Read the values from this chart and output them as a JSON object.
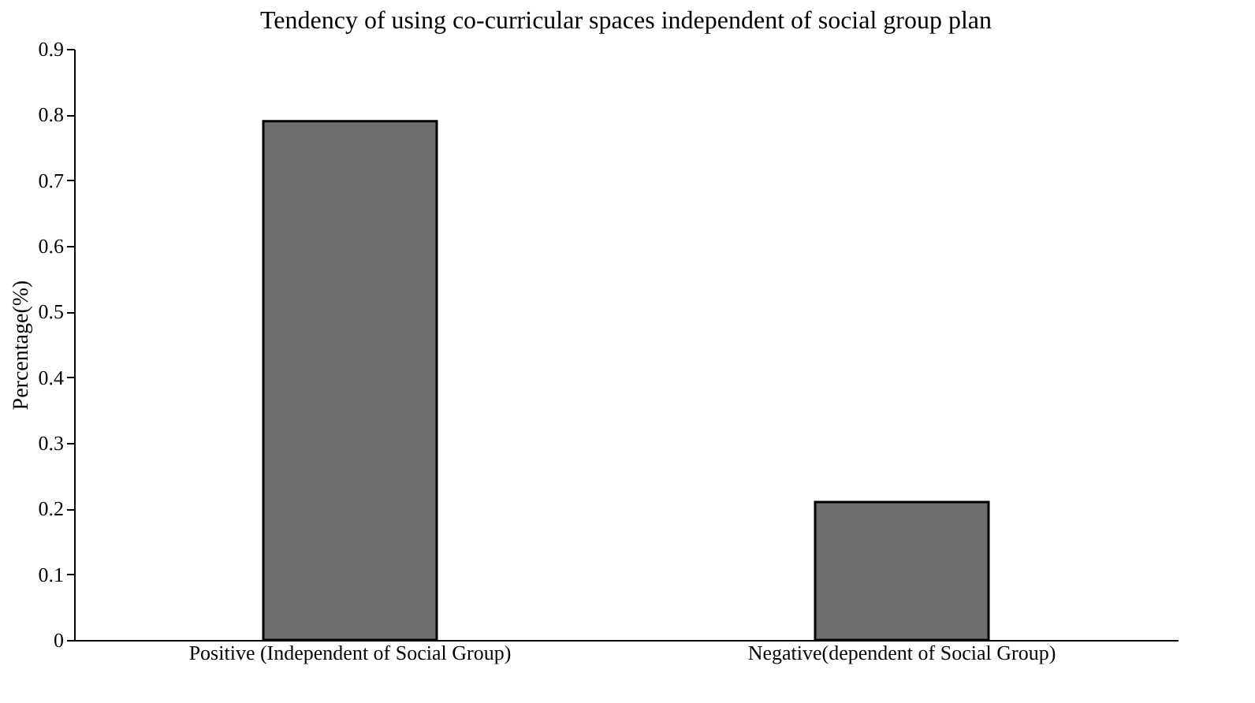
{
  "chart_data": {
    "type": "bar",
    "title": "Tendency of using co-curricular spaces independent of social group plan",
    "ylabel": "Percentage(%)",
    "categories": [
      "Positive (Independent of Social Group)",
      "Negative(dependent of Social Group)"
    ],
    "values": [
      0.79,
      0.21
    ],
    "color": "#6e6e6e",
    "ylim": [
      0,
      0.9
    ],
    "yticks": [
      0,
      0.1,
      0.2,
      0.3,
      0.4,
      0.5,
      0.6,
      0.7,
      0.8,
      0.9
    ],
    "grid": false
  }
}
